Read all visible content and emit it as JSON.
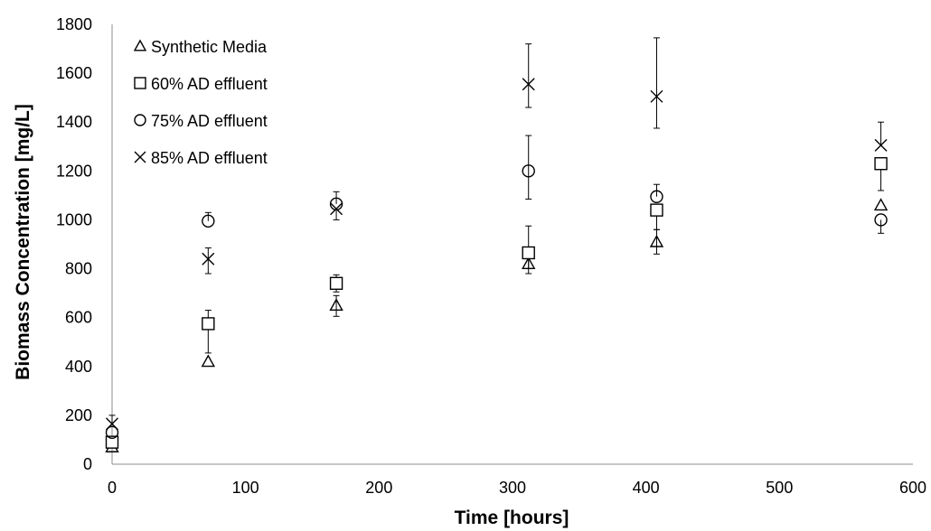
{
  "chart_data": {
    "type": "scatter",
    "title": "",
    "xlabel": "Time [hours]",
    "ylabel": "Biomass Concentration [mg/L]",
    "xlim": [
      0,
      600
    ],
    "ylim": [
      0,
      1800
    ],
    "xticks": [
      0,
      100,
      200,
      300,
      400,
      500,
      600
    ],
    "yticks": [
      0,
      200,
      400,
      600,
      800,
      1000,
      1200,
      1400,
      1600,
      1800
    ],
    "grid": false,
    "legend_position": "top-left",
    "error_bars": true,
    "series": [
      {
        "name": "Synthetic Media",
        "marker": "triangle",
        "points": [
          {
            "x": 0,
            "y": 70,
            "err_low": 0,
            "err_high": 0
          },
          {
            "x": 72,
            "y": 420,
            "err_low": 0,
            "err_high": 0
          },
          {
            "x": 168,
            "y": 650,
            "err_low": 45,
            "err_high": 40
          },
          {
            "x": 312,
            "y": 820,
            "err_low": 40,
            "err_high": 40
          },
          {
            "x": 408,
            "y": 910,
            "err_low": 50,
            "err_high": 50
          },
          {
            "x": 576,
            "y": 1060,
            "err_low": 0,
            "err_high": 0
          }
        ]
      },
      {
        "name": "60% AD effluent",
        "marker": "square",
        "points": [
          {
            "x": 0,
            "y": 90,
            "err_low": 0,
            "err_high": 0
          },
          {
            "x": 72,
            "y": 575,
            "err_low": 120,
            "err_high": 55
          },
          {
            "x": 168,
            "y": 740,
            "err_low": 35,
            "err_high": 35
          },
          {
            "x": 312,
            "y": 865,
            "err_low": 65,
            "err_high": 110
          },
          {
            "x": 408,
            "y": 1040,
            "err_low": 80,
            "err_high": 0
          },
          {
            "x": 576,
            "y": 1230,
            "err_low": 110,
            "err_high": 0
          }
        ]
      },
      {
        "name": "75% AD effluent",
        "marker": "circle",
        "points": [
          {
            "x": 0,
            "y": 130,
            "err_low": 0,
            "err_high": 0
          },
          {
            "x": 72,
            "y": 995,
            "err_low": 0,
            "err_high": 35
          },
          {
            "x": 168,
            "y": 1065,
            "err_low": 0,
            "err_high": 50
          },
          {
            "x": 312,
            "y": 1200,
            "err_low": 115,
            "err_high": 145
          },
          {
            "x": 408,
            "y": 1095,
            "err_low": 0,
            "err_high": 50
          },
          {
            "x": 576,
            "y": 1000,
            "err_low": 55,
            "err_high": 0
          }
        ]
      },
      {
        "name": "85% AD effluent",
        "marker": "x",
        "points": [
          {
            "x": 0,
            "y": 165,
            "err_low": 0,
            "err_high": 35
          },
          {
            "x": 72,
            "y": 840,
            "err_low": 60,
            "err_high": 45
          },
          {
            "x": 168,
            "y": 1045,
            "err_low": 45,
            "err_high": 0
          },
          {
            "x": 312,
            "y": 1555,
            "err_low": 95,
            "err_high": 165
          },
          {
            "x": 408,
            "y": 1505,
            "err_low": 130,
            "err_high": 240
          },
          {
            "x": 576,
            "y": 1305,
            "err_low": 0,
            "err_high": 95
          }
        ]
      }
    ]
  }
}
